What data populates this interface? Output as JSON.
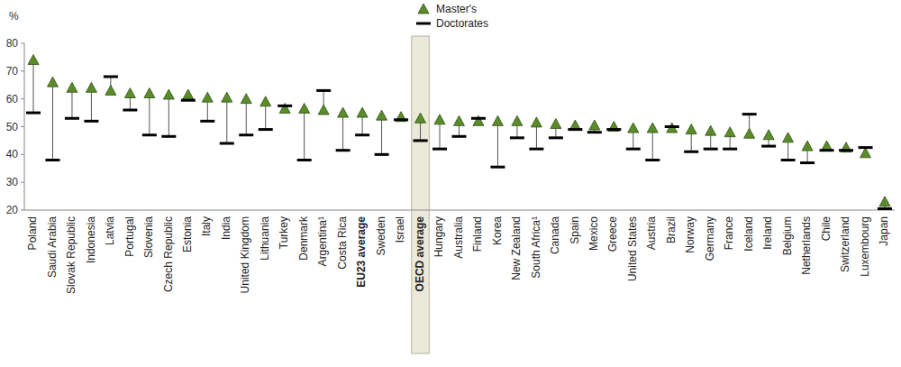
{
  "chart_data": {
    "type": "range",
    "ylabel": "%",
    "categories": [
      "Poland",
      "Saudi Arabia",
      "Slovak Republic",
      "Indonesia",
      "Latvia",
      "Portugal",
      "Slovenia",
      "Czech Republic",
      "Estonia",
      "Italy",
      "India",
      "United Kingdom",
      "Lithuania",
      "Turkey",
      "Denmark",
      "Argentina¹",
      "Costa Rica",
      "EU23 average",
      "Sweden",
      "Israel",
      "OECD average",
      "Hungary",
      "Australia",
      "Finland",
      "Korea",
      "New Zealand",
      "South Africa¹",
      "Canada",
      "Spain",
      "Mexico",
      "Greece",
      "United States",
      "Austria",
      "Brazil",
      "Norway",
      "Germany",
      "France",
      "Iceland",
      "Ireland",
      "Belgium",
      "Netherlands",
      "Chile",
      "Switzerland",
      "Luxembourg",
      "Japan"
    ],
    "series": [
      {
        "name": "Master's",
        "color": "#5b8c2a",
        "marker": "triangle",
        "values": [
          74,
          66,
          64,
          64,
          63,
          62,
          62,
          61.5,
          61.5,
          60.5,
          60.5,
          60,
          59,
          56.5,
          56.5,
          56,
          55,
          55,
          54,
          53.5,
          53,
          52.5,
          52,
          52,
          52,
          52,
          51.5,
          51,
          50.5,
          50.5,
          50,
          49.5,
          49.5,
          49.5,
          49,
          48.5,
          48,
          47.5,
          47,
          46,
          43,
          43,
          42.5,
          40.5,
          23
        ]
      },
      {
        "name": "Doctorates",
        "color": "#000000",
        "marker": "dash",
        "values": [
          55,
          38,
          53,
          52,
          68,
          56,
          47,
          46.5,
          59.5,
          52,
          44,
          47,
          49,
          57.5,
          38,
          63,
          41.5,
          47,
          40,
          52.5,
          45,
          42,
          46.5,
          53,
          35.5,
          46,
          42,
          46,
          49,
          48,
          49,
          42,
          38,
          50,
          41,
          42,
          42,
          54.5,
          43,
          38,
          37,
          41.5,
          41.5,
          42.5,
          20.5
        ]
      }
    ],
    "ylim": [
      20,
      80
    ],
    "yticks": [
      20,
      30,
      40,
      50,
      60,
      70,
      80
    ],
    "grid": false,
    "legend": "top"
  }
}
